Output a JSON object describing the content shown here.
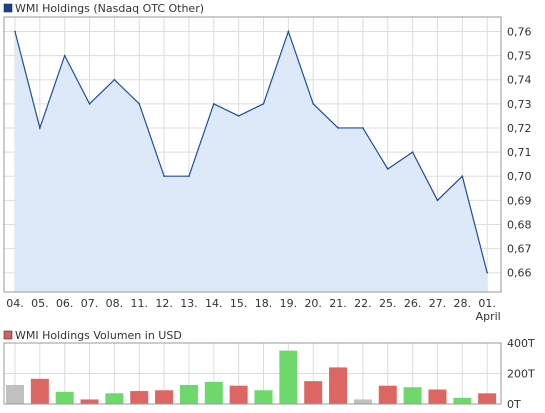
{
  "price_legend": {
    "label": "WMI Holdings (Nasdaq OTC Other)",
    "swatch_color": "#1f3f8f"
  },
  "volume_legend": {
    "label": "WMI Holdings Volumen in USD",
    "swatch_color": "#d9605a"
  },
  "colors": {
    "price_line": "#1f4e9a",
    "price_fill": "#dde8f8",
    "grid": "#dddddd",
    "frame": "#999999",
    "volume_up": "#6ed86a",
    "volume_down": "#dd6663",
    "volume_neutral": "#c0c0c0"
  },
  "chart_data": [
    {
      "type": "area",
      "x": [
        "04.",
        "05.",
        "06.",
        "07.",
        "08.",
        "11.",
        "12.",
        "13.",
        "14.",
        "15.",
        "18.",
        "19.",
        "20.",
        "21.",
        "22.",
        "25.",
        "26.",
        "27.",
        "28.",
        "01."
      ],
      "x_sublabel": {
        "index": 19,
        "text": "April"
      },
      "series": [
        {
          "name": "WMI Holdings (Nasdaq OTC Other)",
          "values": [
            0.76,
            0.72,
            0.75,
            0.73,
            0.74,
            0.73,
            0.7,
            0.7,
            0.73,
            0.725,
            0.73,
            0.76,
            0.73,
            0.72,
            0.72,
            0.703,
            0.71,
            0.69,
            0.7,
            0.66
          ]
        }
      ],
      "yticks": [
        0.66,
        0.67,
        0.68,
        0.69,
        0.7,
        0.71,
        0.72,
        0.73,
        0.74,
        0.75,
        0.76
      ],
      "ytick_labels": [
        "0,66",
        "0,67",
        "0,68",
        "0,69",
        "0,70",
        "0,71",
        "0,72",
        "0,73",
        "0,74",
        "0,75",
        "0,76"
      ],
      "ylim": [
        0.652,
        0.766
      ],
      "y_axis_side": "right",
      "grid": true,
      "legend": "top-left"
    },
    {
      "type": "bar",
      "categories": [
        "04.",
        "05.",
        "06.",
        "07.",
        "08.",
        "11.",
        "12.",
        "13.",
        "14.",
        "15.",
        "18.",
        "19.",
        "20.",
        "21.",
        "22.",
        "25.",
        "26.",
        "27.",
        "28.",
        "01."
      ],
      "series": [
        {
          "name": "WMI Holdings Volumen in USD",
          "values": [
            125,
            165,
            80,
            30,
            70,
            85,
            90,
            125,
            145,
            120,
            90,
            350,
            150,
            240,
            30,
            120,
            110,
            95,
            40,
            70
          ],
          "directions": [
            "neutral",
            "down",
            "up",
            "down",
            "up",
            "down",
            "down",
            "up",
            "up",
            "down",
            "up",
            "up",
            "down",
            "down",
            "neutral",
            "down",
            "up",
            "down",
            "up",
            "down"
          ]
        }
      ],
      "yticks": [
        0,
        200,
        400
      ],
      "ytick_labels": [
        "0T",
        "200T",
        "400T"
      ],
      "ylim": [
        0,
        400
      ],
      "y_axis_side": "right",
      "grid": true,
      "legend": "top-left"
    }
  ]
}
